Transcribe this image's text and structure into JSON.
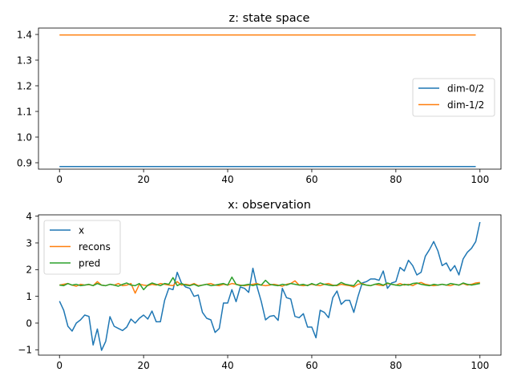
{
  "chart_data": [
    {
      "type": "line",
      "title": "z: state space",
      "xlabel": "",
      "ylabel": "",
      "xlim": [
        -5,
        105
      ],
      "ylim": [
        0.875,
        1.425
      ],
      "xticks": [
        0,
        20,
        40,
        60,
        80,
        100
      ],
      "yticks": [
        0.9,
        1.0,
        1.1,
        1.2,
        1.3,
        1.4
      ],
      "ytick_labels": [
        "0.9",
        "1.0",
        "1.1",
        "1.2",
        "1.3",
        "1.4"
      ],
      "legend": "center-right",
      "x": [
        0,
        99
      ],
      "series": [
        {
          "name": "dim-0/2",
          "color": "#1f77b4",
          "values": [
            0.885,
            0.885
          ]
        },
        {
          "name": "dim-1/2",
          "color": "#ff7f0e",
          "values": [
            1.398,
            1.398
          ]
        }
      ]
    },
    {
      "type": "line",
      "title": "x: observation",
      "xlabel": "",
      "ylabel": "",
      "xlim": [
        -5,
        105
      ],
      "ylim": [
        -1.2,
        4.05
      ],
      "xticks": [
        0,
        20,
        40,
        60,
        80,
        100
      ],
      "yticks": [
        -1,
        0,
        1,
        2,
        3,
        4
      ],
      "ytick_labels": [
        "−1",
        "0",
        "1",
        "2",
        "3",
        "4"
      ],
      "legend": "upper-left",
      "series": [
        {
          "name": "x",
          "color": "#1f77b4",
          "values": [
            0.82,
            0.48,
            -0.12,
            -0.3,
            0.0,
            0.12,
            0.3,
            0.25,
            -0.82,
            -0.22,
            -1.02,
            -0.68,
            0.24,
            -0.12,
            -0.2,
            -0.28,
            -0.15,
            0.15,
            0.0,
            0.18,
            0.3,
            0.15,
            0.45,
            0.05,
            0.05,
            0.85,
            1.3,
            1.25,
            1.9,
            1.5,
            1.35,
            1.3,
            1.0,
            1.05,
            0.4,
            0.18,
            0.12,
            -0.35,
            -0.2,
            0.75,
            0.75,
            1.25,
            0.8,
            1.35,
            1.3,
            1.15,
            2.05,
            1.35,
            0.8,
            0.12,
            0.25,
            0.28,
            0.1,
            1.3,
            0.95,
            0.9,
            0.25,
            0.2,
            0.35,
            -0.15,
            -0.15,
            -0.55,
            0.48,
            0.4,
            0.2,
            0.95,
            1.2,
            0.7,
            0.85,
            0.85,
            0.4,
            1.0,
            1.5,
            1.55,
            1.65,
            1.65,
            1.6,
            1.95,
            1.3,
            1.5,
            1.55,
            2.08,
            1.95,
            2.35,
            2.15,
            1.8,
            1.9,
            2.5,
            2.75,
            3.05,
            2.7,
            2.15,
            2.25,
            1.95,
            2.15,
            1.8,
            2.4,
            2.65,
            2.8,
            3.05,
            3.78
          ]
        },
        {
          "name": "recons",
          "color": "#ff7f0e",
          "values": [
            1.42,
            1.45,
            1.48,
            1.42,
            1.38,
            1.45,
            1.42,
            1.44,
            1.4,
            1.55,
            1.42,
            1.4,
            1.45,
            1.42,
            1.48,
            1.4,
            1.42,
            1.48,
            1.12,
            1.45,
            1.42,
            1.4,
            1.45,
            1.42,
            1.48,
            1.45,
            1.42,
            1.4,
            1.55,
            1.42,
            1.45,
            1.42,
            1.48,
            1.4,
            1.42,
            1.45,
            1.48,
            1.42,
            1.4,
            1.45,
            1.42,
            1.48,
            1.45,
            1.42,
            1.4,
            1.42,
            1.45,
            1.48,
            1.42,
            1.4,
            1.42,
            1.45,
            1.42,
            1.38,
            1.45,
            1.48,
            1.58,
            1.42,
            1.4,
            1.42,
            1.45,
            1.42,
            1.4,
            1.45,
            1.48,
            1.42,
            1.4,
            1.45,
            1.42,
            1.4,
            1.35,
            1.45,
            1.48,
            1.42,
            1.4,
            1.45,
            1.42,
            1.4,
            1.48,
            1.45,
            1.42,
            1.48,
            1.42,
            1.45,
            1.4,
            1.48,
            1.52,
            1.45,
            1.42,
            1.4,
            1.42,
            1.45,
            1.42,
            1.4,
            1.45,
            1.42,
            1.48,
            1.42,
            1.45,
            1.5,
            1.52
          ]
        },
        {
          "name": "pred",
          "color": "#2ca02c",
          "values": [
            1.42,
            1.4,
            1.48,
            1.42,
            1.45,
            1.4,
            1.42,
            1.45,
            1.4,
            1.48,
            1.42,
            1.4,
            1.45,
            1.42,
            1.38,
            1.45,
            1.5,
            1.42,
            1.4,
            1.48,
            1.25,
            1.42,
            1.5,
            1.45,
            1.4,
            1.48,
            1.45,
            1.7,
            1.4,
            1.48,
            1.42,
            1.4,
            1.45,
            1.38,
            1.42,
            1.45,
            1.4,
            1.42,
            1.45,
            1.48,
            1.42,
            1.72,
            1.45,
            1.4,
            1.42,
            1.45,
            1.4,
            1.45,
            1.42,
            1.6,
            1.45,
            1.42,
            1.4,
            1.45,
            1.42,
            1.48,
            1.45,
            1.42,
            1.45,
            1.4,
            1.48,
            1.42,
            1.5,
            1.45,
            1.42,
            1.4,
            1.42,
            1.52,
            1.45,
            1.42,
            1.4,
            1.6,
            1.45,
            1.42,
            1.4,
            1.45,
            1.48,
            1.42,
            1.5,
            1.45,
            1.42,
            1.4,
            1.45,
            1.42,
            1.48,
            1.5,
            1.45,
            1.42,
            1.4,
            1.45,
            1.42,
            1.45,
            1.42,
            1.48,
            1.45,
            1.42,
            1.5,
            1.45,
            1.42,
            1.45,
            1.48
          ]
        }
      ]
    }
  ]
}
